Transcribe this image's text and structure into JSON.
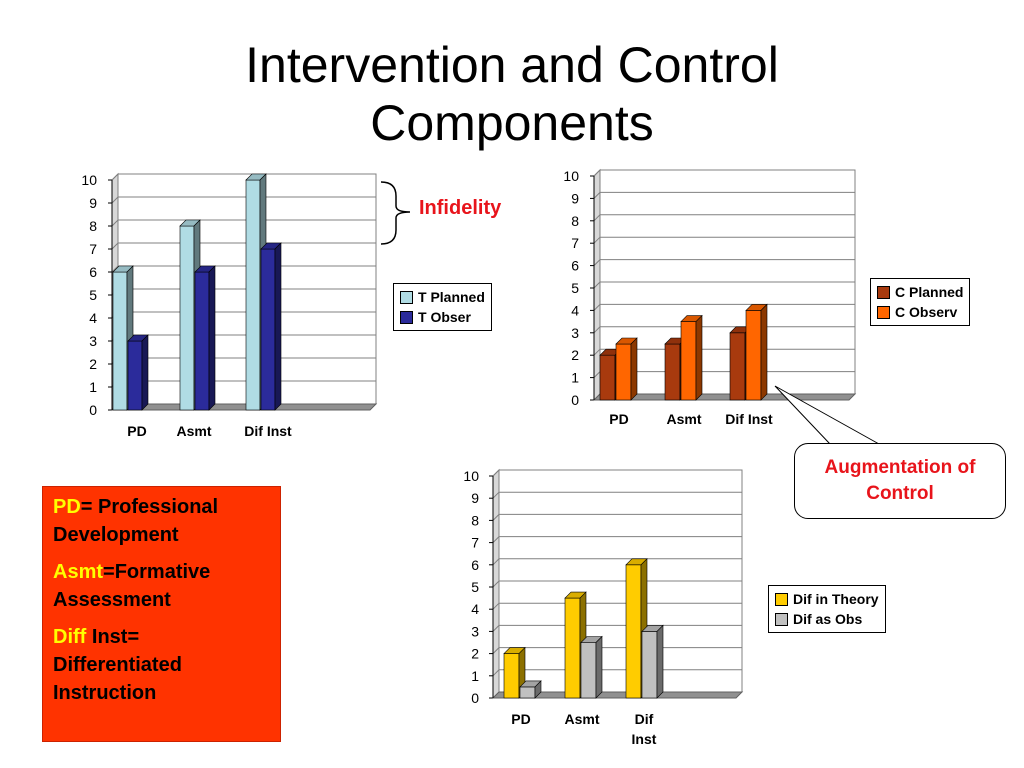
{
  "slide": {
    "title_line1": "Intervention and Control",
    "title_line2": "Components",
    "infidelity_label": "Infidelity",
    "augmentation_label": "Augmentation of Control",
    "definitions": [
      {
        "abbr": "PD",
        "sep": "= ",
        "text": "Professional Development"
      },
      {
        "abbr": "Asmt",
        "sep": "=",
        "text": "Formative Assessment"
      },
      {
        "abbr": "Diff",
        "sep": " ",
        "text": "Inst= Differentiated Instruction"
      }
    ]
  },
  "chart_data": [
    {
      "type": "bar",
      "categories": [
        "PD",
        "Asmt",
        "Dif Inst"
      ],
      "series": [
        {
          "name": "T Planned",
          "values": [
            6,
            8,
            10
          ],
          "color": "#b0dce4"
        },
        {
          "name": "T Obser",
          "values": [
            3,
            6,
            7
          ],
          "color": "#2b2b9b"
        }
      ],
      "ylim": [
        0,
        10
      ],
      "yticks": [
        "0",
        "1",
        "2",
        "3",
        "4",
        "5",
        "6",
        "7",
        "8",
        "9",
        "10"
      ],
      "grid": true,
      "legend_position": "right",
      "style": "3d-bar"
    },
    {
      "type": "bar",
      "categories": [
        "PD",
        "Asmt",
        "Dif Inst"
      ],
      "series": [
        {
          "name": "C Planned",
          "values": [
            2,
            2.5,
            3
          ],
          "color": "#a83a0e"
        },
        {
          "name": "C Observ",
          "values": [
            2.5,
            3.5,
            4
          ],
          "color": "#ff6600"
        }
      ],
      "ylim": [
        0,
        10
      ],
      "yticks": [
        "0",
        "1",
        "2",
        "3",
        "4",
        "5",
        "6",
        "7",
        "8",
        "9",
        "10"
      ],
      "grid": true,
      "legend_position": "right",
      "style": "3d-bar"
    },
    {
      "type": "bar",
      "categories": [
        "PD",
        "Asmt",
        "Dif Inst"
      ],
      "series": [
        {
          "name": "Dif in Theory",
          "values": [
            2,
            4.5,
            6
          ],
          "color": "#ffcc00"
        },
        {
          "name": "Dif as Obs",
          "values": [
            0.5,
            2.5,
            3
          ],
          "color": "#c0c0c0"
        }
      ],
      "ylim": [
        0,
        10
      ],
      "yticks": [
        "0",
        "1",
        "2",
        "3",
        "4",
        "5",
        "6",
        "7",
        "8",
        "9",
        "10"
      ],
      "grid": true,
      "legend_position": "right",
      "style": "3d-bar"
    }
  ]
}
